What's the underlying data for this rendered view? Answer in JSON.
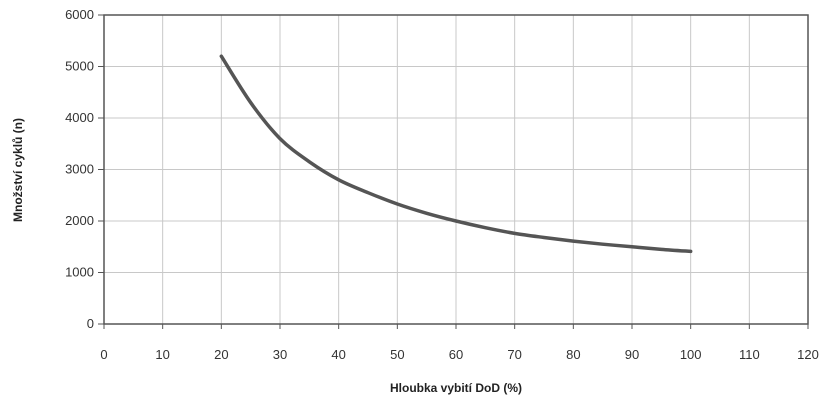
{
  "chart_data": {
    "type": "line",
    "title": "",
    "xlabel": "Hloubka vybití DoD (%)",
    "ylabel": "Množství cyklů (n)",
    "xlim": [
      0,
      120
    ],
    "ylim": [
      0,
      6000
    ],
    "x_ticks": [
      "0",
      "10",
      "20",
      "30",
      "40",
      "50",
      "60",
      "70",
      "80",
      "90",
      "100",
      "110",
      "120"
    ],
    "y_ticks": [
      "0",
      "1000",
      "2000",
      "3000",
      "4000",
      "5000",
      "6000"
    ],
    "grid": true,
    "series": [
      {
        "color": "#555555",
        "x": [
          20,
          25,
          30,
          35,
          40,
          45,
          50,
          55,
          60,
          65,
          70,
          75,
          80,
          85,
          90,
          95,
          100
        ],
        "y": [
          5200,
          4300,
          3600,
          3150,
          2800,
          2550,
          2330,
          2150,
          2000,
          1870,
          1760,
          1680,
          1610,
          1550,
          1500,
          1450,
          1410
        ]
      }
    ]
  }
}
